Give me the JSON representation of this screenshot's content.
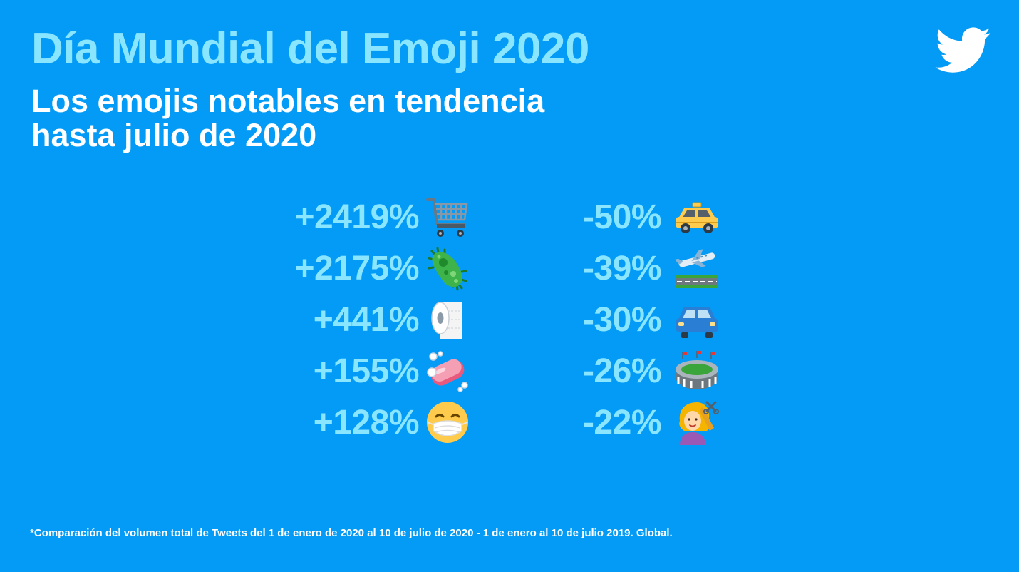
{
  "header": {
    "title": "Día Mundial del Emoji 2020",
    "subtitle_line1": "Los emojis notables en tendencia",
    "subtitle_line2": "hasta julio de 2020"
  },
  "logo": {
    "icon": "twitter-bird-icon",
    "color": "#ffffff"
  },
  "increases": [
    {
      "value": "+2419%",
      "icon": "shopping-cart-icon"
    },
    {
      "value": "+2175%",
      "icon": "microbe-icon"
    },
    {
      "value": "+441%",
      "icon": "toilet-paper-icon"
    },
    {
      "value": "+155%",
      "icon": "soap-icon"
    },
    {
      "value": "+128%",
      "icon": "face-with-medical-mask-icon"
    }
  ],
  "decreases": [
    {
      "value": "-50%",
      "icon": "taxi-icon"
    },
    {
      "value": "-39%",
      "icon": "airplane-departure-icon"
    },
    {
      "value": "-30%",
      "icon": "automobile-icon"
    },
    {
      "value": "-26%",
      "icon": "stadium-icon"
    },
    {
      "value": "-22%",
      "icon": "haircut-icon"
    }
  ],
  "footnote": "*Comparación del volumen total de Tweets del 1 de enero de 2020 al 10 de julio de 2020 - 1 de enero al 10 de julio 2019. Global.",
  "colors": {
    "background": "#039bf5",
    "accent": "#8ae6ff",
    "text": "#ffffff"
  }
}
